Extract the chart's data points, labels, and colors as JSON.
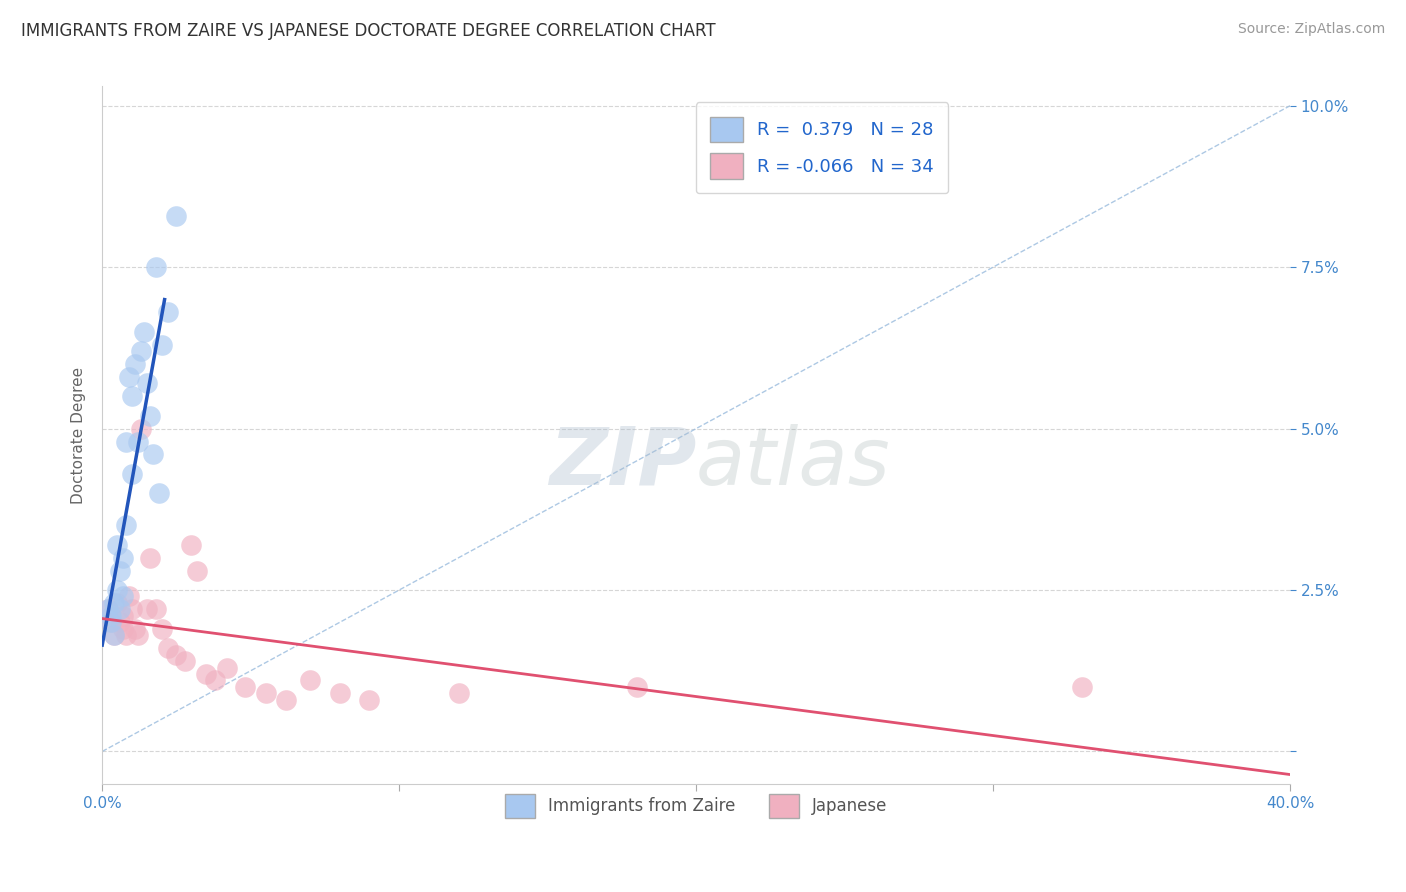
{
  "title": "IMMIGRANTS FROM ZAIRE VS JAPANESE DOCTORATE DEGREE CORRELATION CHART",
  "source": "Source: ZipAtlas.com",
  "ylabel": "Doctorate Degree",
  "xlim": [
    0.0,
    0.4
  ],
  "ylim": [
    -0.005,
    0.103
  ],
  "xticks": [
    0.0,
    0.1,
    0.2,
    0.3,
    0.4
  ],
  "yticks": [
    0.0,
    0.025,
    0.05,
    0.075,
    0.1
  ],
  "xtick_labels": [
    "0.0%",
    "",
    "",
    "",
    "40.0%"
  ],
  "ytick_labels_left": [
    "",
    "2.5%",
    "5.0%",
    "7.5%",
    "10.0%"
  ],
  "ytick_labels_right": [
    "",
    "2.5%",
    "5.0%",
    "7.5%",
    "10.0%"
  ],
  "legend_labels": [
    "Immigrants from Zaire",
    "Japanese"
  ],
  "blue_R": 0.379,
  "blue_N": 28,
  "pink_R": -0.066,
  "pink_N": 34,
  "blue_color": "#A8C8F0",
  "pink_color": "#F0B0C0",
  "blue_line_color": "#2255BB",
  "pink_line_color": "#E05070",
  "diag_color": "#99BBDD",
  "watermark_zip": "ZIP",
  "watermark_atlas": "atlas",
  "blue_scatter_x": [
    0.002,
    0.003,
    0.003,
    0.004,
    0.004,
    0.005,
    0.005,
    0.006,
    0.006,
    0.007,
    0.007,
    0.008,
    0.008,
    0.009,
    0.01,
    0.01,
    0.011,
    0.012,
    0.013,
    0.014,
    0.015,
    0.016,
    0.017,
    0.018,
    0.019,
    0.02,
    0.022,
    0.025
  ],
  "blue_scatter_y": [
    0.022,
    0.021,
    0.02,
    0.023,
    0.018,
    0.025,
    0.032,
    0.028,
    0.022,
    0.03,
    0.024,
    0.035,
    0.048,
    0.058,
    0.043,
    0.055,
    0.06,
    0.048,
    0.062,
    0.065,
    0.057,
    0.052,
    0.046,
    0.075,
    0.04,
    0.063,
    0.068,
    0.083
  ],
  "pink_scatter_x": [
    0.002,
    0.003,
    0.004,
    0.005,
    0.006,
    0.007,
    0.007,
    0.008,
    0.009,
    0.01,
    0.011,
    0.012,
    0.013,
    0.015,
    0.016,
    0.018,
    0.02,
    0.022,
    0.025,
    0.028,
    0.03,
    0.032,
    0.035,
    0.038,
    0.042,
    0.048,
    0.055,
    0.062,
    0.07,
    0.08,
    0.09,
    0.12,
    0.18,
    0.33
  ],
  "pink_scatter_y": [
    0.022,
    0.02,
    0.018,
    0.023,
    0.02,
    0.019,
    0.021,
    0.018,
    0.024,
    0.022,
    0.019,
    0.018,
    0.05,
    0.022,
    0.03,
    0.022,
    0.019,
    0.016,
    0.015,
    0.014,
    0.032,
    0.028,
    0.012,
    0.011,
    0.013,
    0.01,
    0.009,
    0.008,
    0.011,
    0.009,
    0.008,
    0.009,
    0.01,
    0.01
  ],
  "background_color": "#FFFFFF",
  "grid_color": "#CCCCCC",
  "title_fontsize": 12,
  "axis_fontsize": 11,
  "tick_fontsize": 11,
  "source_fontsize": 10
}
